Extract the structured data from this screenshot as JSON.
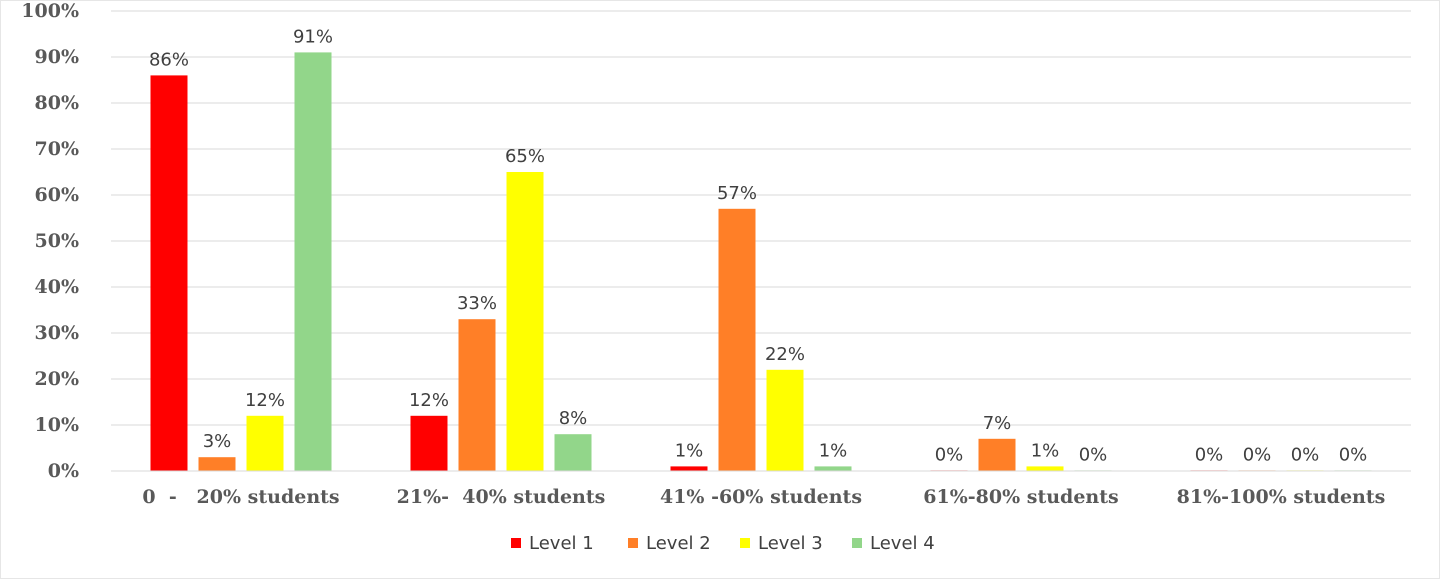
{
  "chart_data": {
    "type": "bar",
    "title": "",
    "xlabel": "",
    "ylabel": "",
    "ylim": [
      0,
      100
    ],
    "yticks": [
      0,
      10,
      20,
      30,
      40,
      50,
      60,
      70,
      80,
      90,
      100
    ],
    "ytick_labels": [
      "0%",
      "10%",
      "20%",
      "30%",
      "40%",
      "50%",
      "60%",
      "70%",
      "80%",
      "90%",
      "100%"
    ],
    "categories": [
      "0  -   20% students",
      "21%-  40% students",
      "41% -60% students",
      "61%-80% students",
      "81%-100% students"
    ],
    "series": [
      {
        "name": "Level 1",
        "color": "#ff0000",
        "values": [
          86,
          12,
          1,
          0,
          0
        ],
        "labels": [
          "86%",
          "12%",
          "1%",
          "0%",
          "0%"
        ]
      },
      {
        "name": "Level 2",
        "color": "#ff7f27",
        "values": [
          3,
          33,
          57,
          7,
          0
        ],
        "labels": [
          "3%",
          "33%",
          "57%",
          "7%",
          "0%"
        ]
      },
      {
        "name": "Level 3",
        "color": "#ffff00",
        "values": [
          12,
          65,
          22,
          1,
          0
        ],
        "labels": [
          "12%",
          "65%",
          "22%",
          "1%",
          "0%"
        ]
      },
      {
        "name": "Level 4",
        "color": "#92d68a",
        "values": [
          91,
          8,
          1,
          0,
          0
        ],
        "labels": [
          "91%",
          "8%",
          "1%",
          "0%",
          "0%"
        ]
      }
    ],
    "grid": true,
    "legend_position": "bottom"
  }
}
